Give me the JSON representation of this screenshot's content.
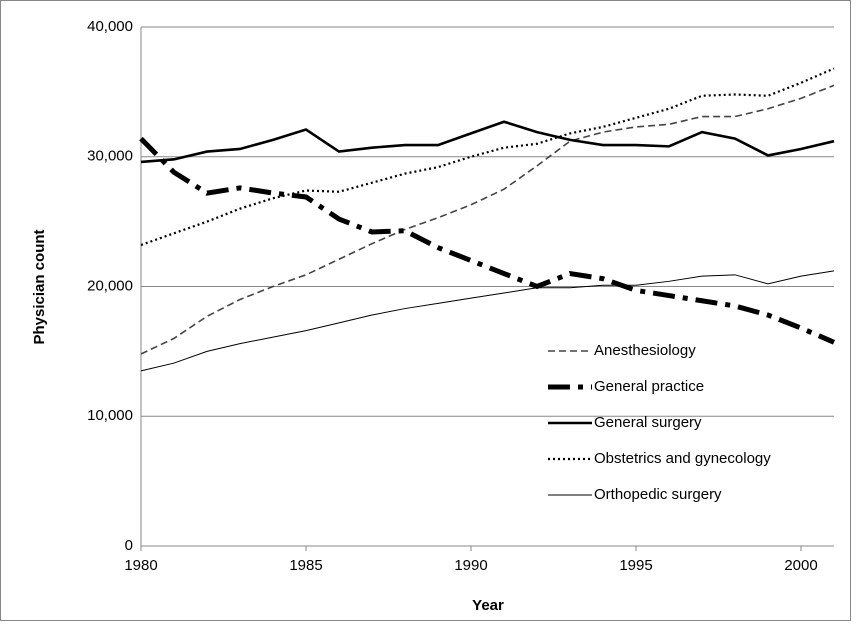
{
  "chart_data": {
    "type": "line",
    "x_label": "Year",
    "y_label": "Physician count",
    "x": [
      1980,
      1981,
      1982,
      1983,
      1984,
      1985,
      1986,
      1987,
      1988,
      1989,
      1990,
      1991,
      1992,
      1993,
      1994,
      1995,
      1996,
      1997,
      1998,
      1999,
      2000,
      2001
    ],
    "xlim": [
      1980,
      2001
    ],
    "xticks": [
      1980,
      1985,
      1990,
      1995,
      2000
    ],
    "ylim": [
      0,
      40000
    ],
    "yticks": [
      0,
      {
        "value": 10000,
        "label": "10,000"
      },
      {
        "value": 20000,
        "label": "20,000"
      },
      {
        "value": 30000,
        "label": "30,000"
      },
      {
        "value": 40000,
        "label": "40,000"
      }
    ],
    "grid": true,
    "legend": "right",
    "series": [
      {
        "name": "Anesthesiology",
        "color": "#444444",
        "style": "dashed",
        "values": [
          14800,
          16000,
          17700,
          19000,
          20000,
          20900,
          22100,
          23300,
          24400,
          25300,
          26300,
          27500,
          29300,
          31200,
          31900,
          32300,
          32500,
          33100,
          33100,
          33700,
          34500,
          35500
        ]
      },
      {
        "name": "General practice",
        "color": "#000000",
        "style": "dash-dot",
        "values": [
          31400,
          28800,
          27200,
          27600,
          27200,
          26900,
          25200,
          24200,
          24300,
          23000,
          22000,
          21000,
          20000,
          21000,
          20600,
          19700,
          19300,
          18900,
          18500,
          17800,
          16800,
          15700
        ]
      },
      {
        "name": "General surgery",
        "color": "#000000",
        "style": "solid",
        "values": [
          29600,
          29800,
          30400,
          30600,
          31300,
          32100,
          30400,
          30700,
          30900,
          30900,
          31800,
          32700,
          31900,
          31300,
          30900,
          30900,
          30800,
          31900,
          31400,
          30100,
          30600,
          31200
        ]
      },
      {
        "name": "Obstetrics and gynecology",
        "color": "#000000",
        "style": "dotted",
        "values": [
          23200,
          24100,
          25000,
          26000,
          26800,
          27400,
          27300,
          28000,
          28700,
          29200,
          30000,
          30700,
          31000,
          31800,
          32300,
          33000,
          33700,
          34700,
          34800,
          34700,
          35700,
          36800
        ]
      },
      {
        "name": "Orthopedic surgery",
        "color": "#000000",
        "style": "thin",
        "values": [
          13500,
          14100,
          15000,
          15600,
          16100,
          16600,
          17200,
          17800,
          18300,
          18700,
          19100,
          19500,
          19900,
          19900,
          20100,
          20100,
          20400,
          20800,
          20900,
          20200,
          20800,
          21200
        ]
      }
    ]
  }
}
